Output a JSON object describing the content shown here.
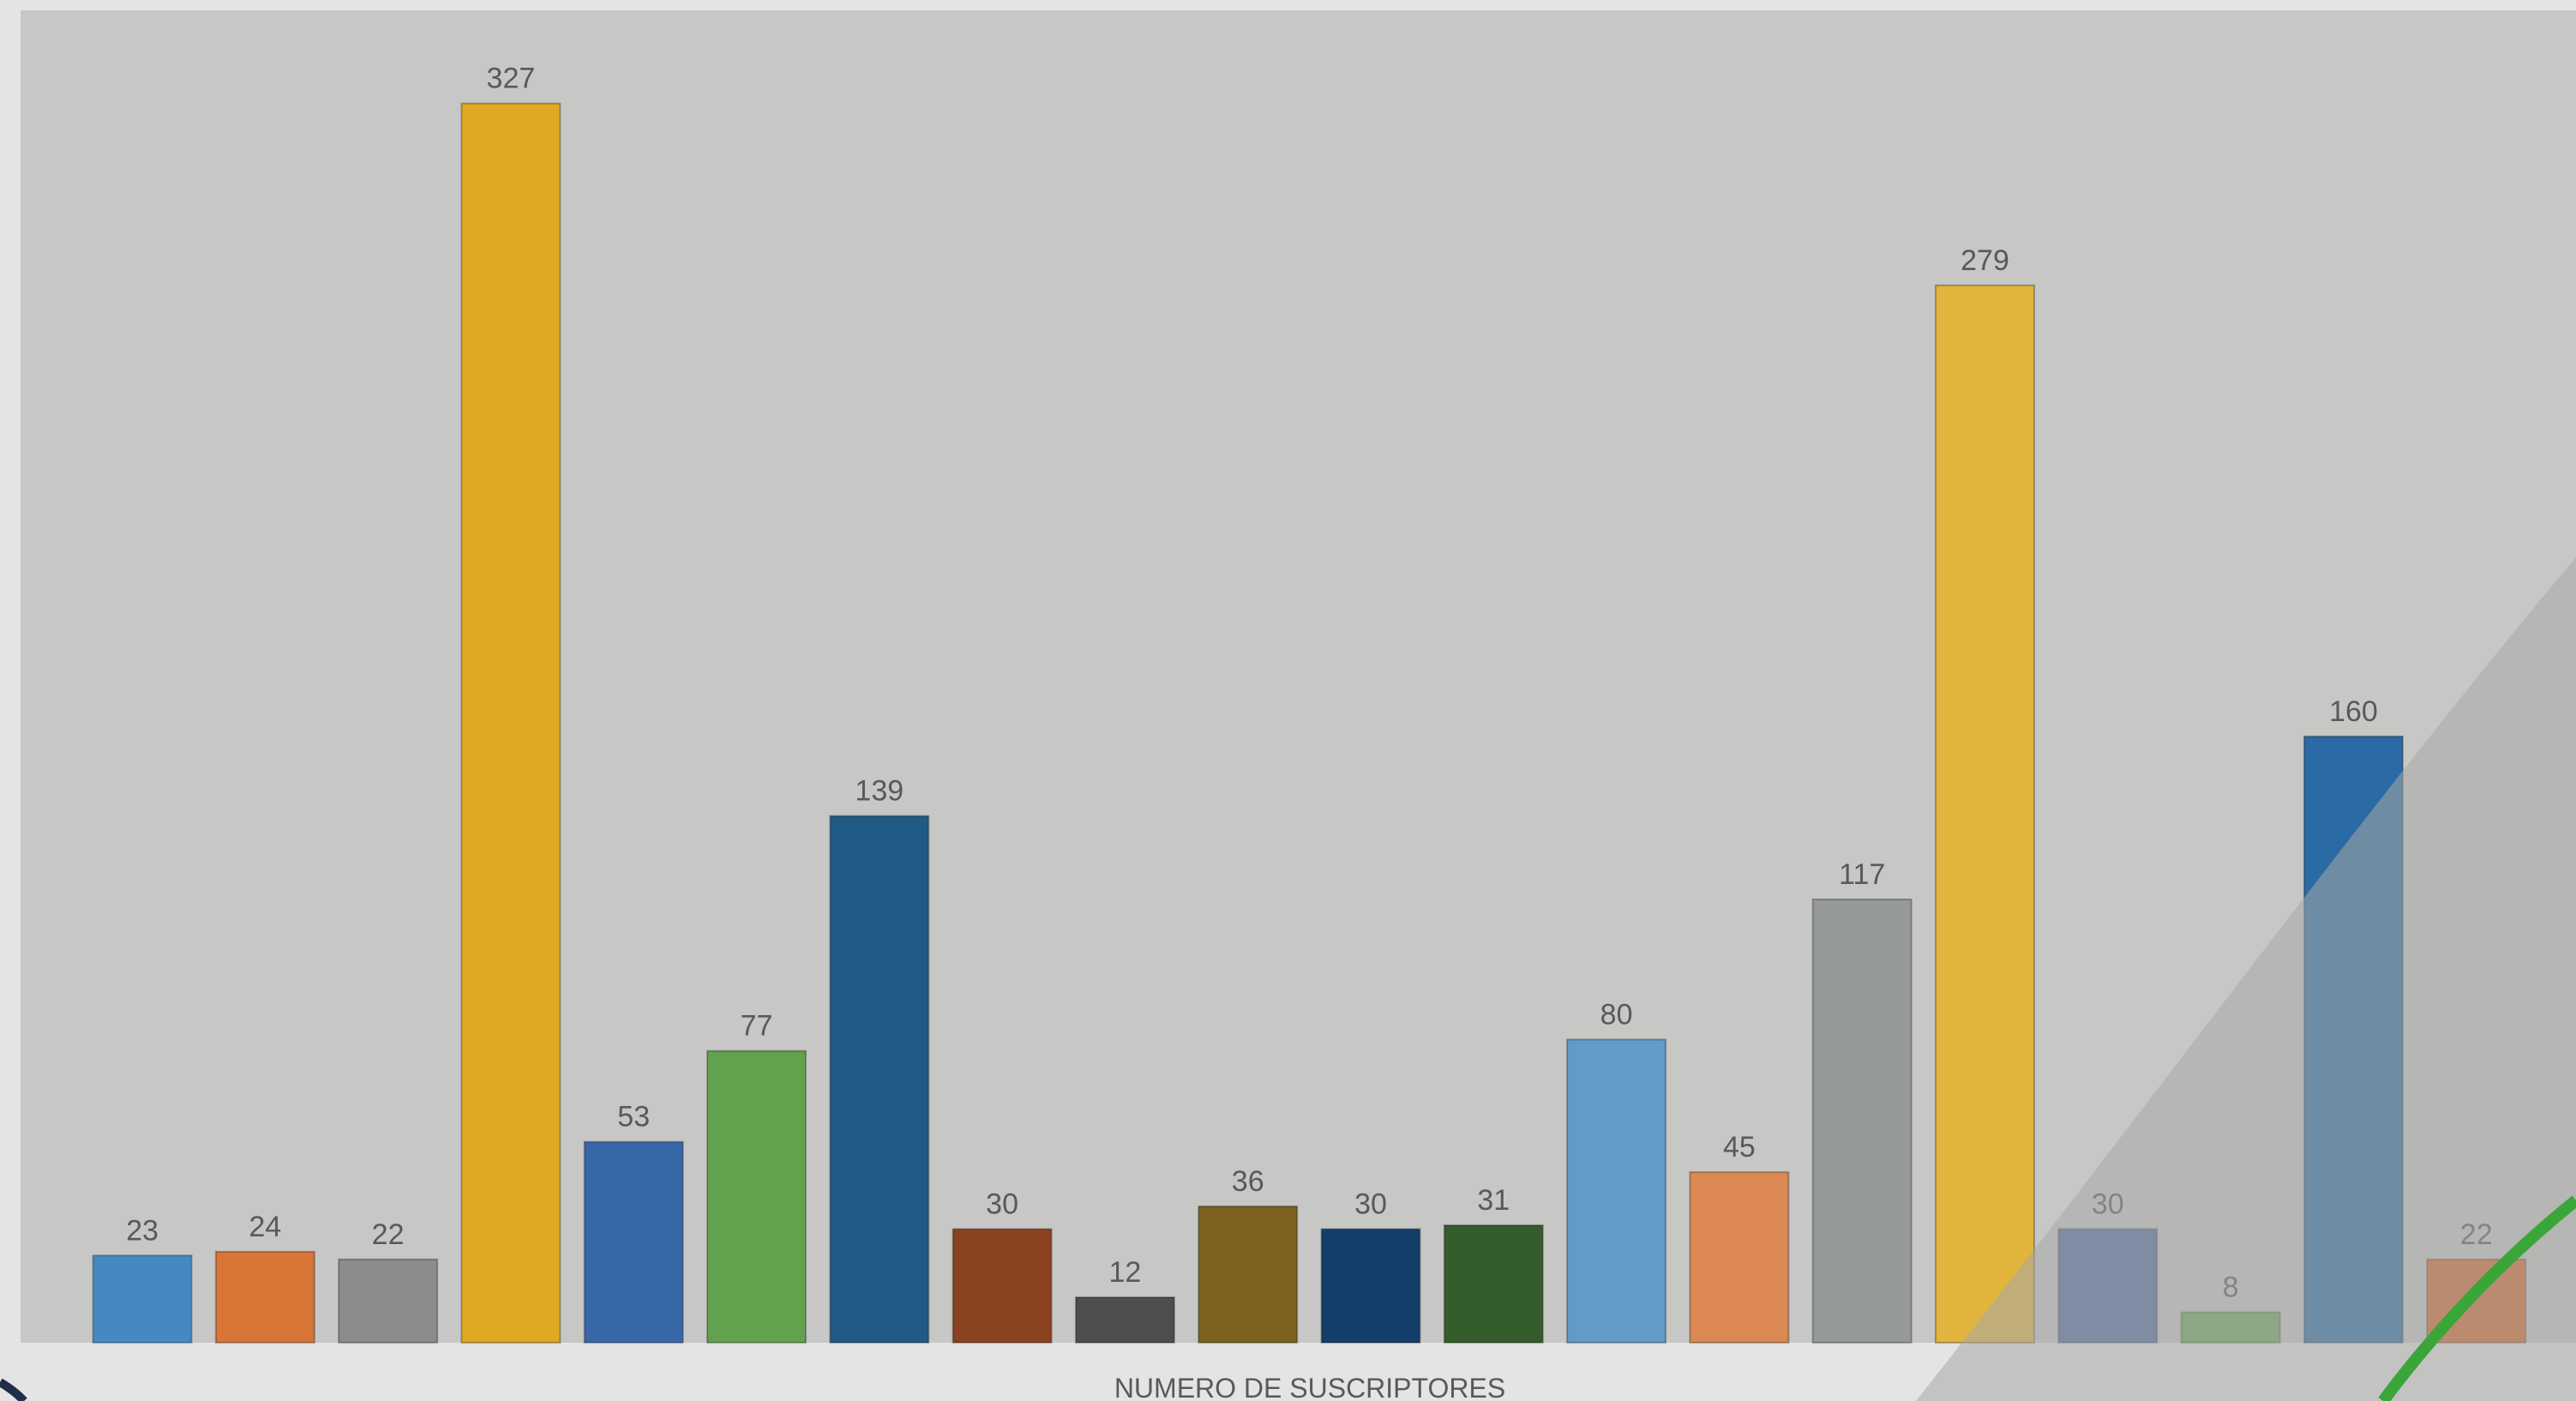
{
  "chart_data": {
    "type": "bar",
    "title": "",
    "xlabel": "NUMERO DE SUSCRIPTORES",
    "ylabel": "",
    "ylim": [
      0,
      340
    ],
    "grid": false,
    "legend": "none",
    "data_labels": true,
    "values": [
      23,
      24,
      22,
      327,
      53,
      77,
      139,
      30,
      12,
      36,
      30,
      31,
      80,
      45,
      117,
      279,
      30,
      8,
      160,
      22
    ],
    "bar_colors": [
      "#4589c3",
      "#d87536",
      "#8a8c8e",
      "#e0a823",
      "#3867a8",
      "#62a14d",
      "#225a86",
      "#8a4220",
      "#4c4e50",
      "#7c611f",
      "#143e6a",
      "#355d2c",
      "#629ac8",
      "#dc8853",
      "#96999a",
      "#e1b43e",
      "#4e6c9f",
      "#6ba95b",
      "#2a6aa5",
      "#d3682f"
    ]
  },
  "theme": {
    "page_background": "#e4e4e4",
    "plot_background": "#c7c7c5",
    "overlay_shape": "#b3b4b2",
    "accent_green": "#3aa63a",
    "accent_navy": "#1e2e4a",
    "label_color": "#595959"
  }
}
